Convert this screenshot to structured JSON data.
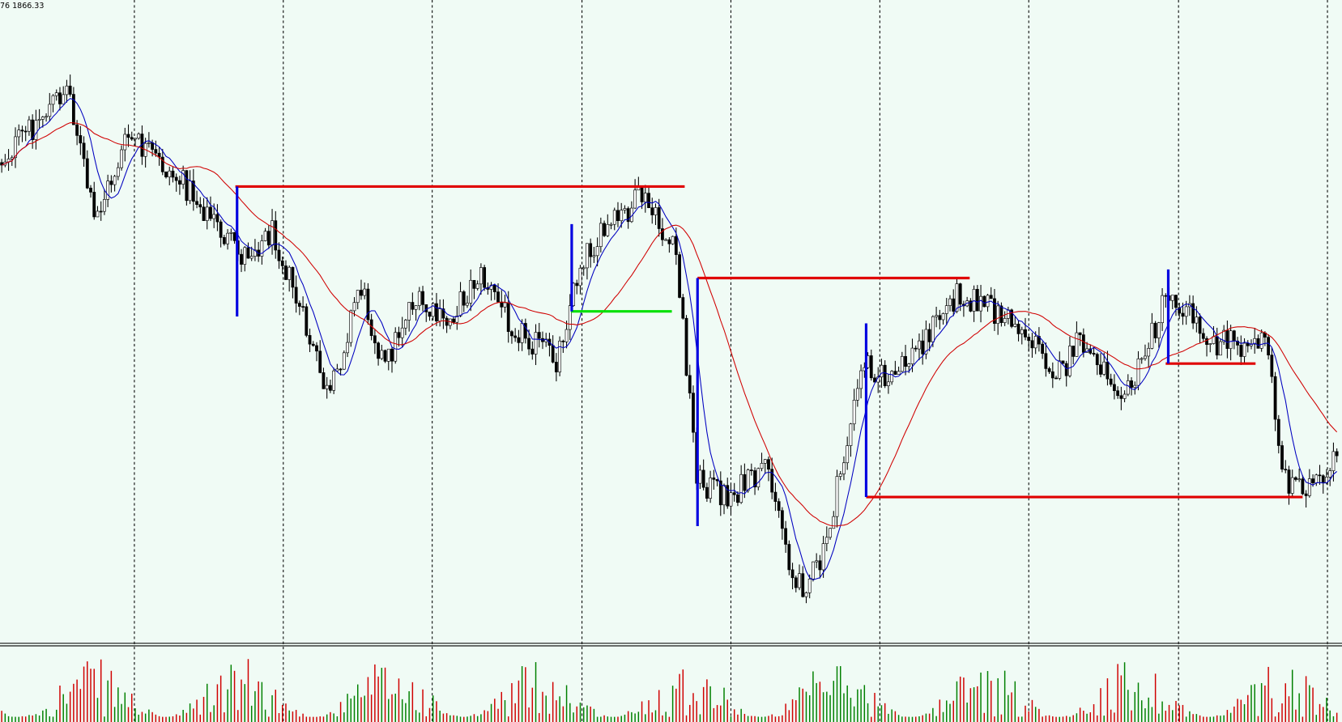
{
  "header": {
    "price_label": "76 1866.33"
  }
}
